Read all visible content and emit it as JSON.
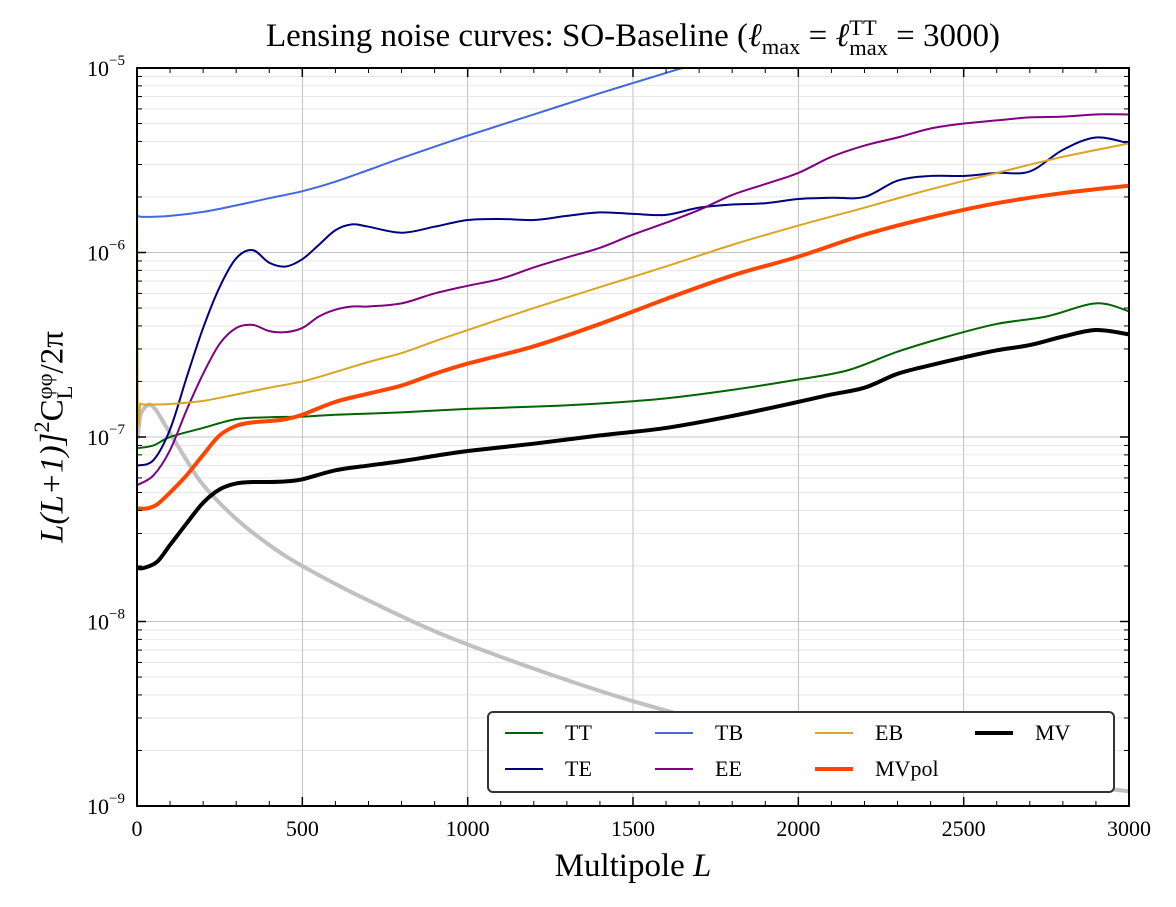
{
  "title": {
    "prefix": "Lensing noise curves: SO-Baseline (",
    "lmax_sub": "max",
    "tt_sup": "TT",
    "tt_sub": "max",
    "suffix": " = 3000)"
  },
  "xlabel": "Multipole",
  "xlabel_var": "L",
  "ylabel": {
    "pre": "L(L+1)]",
    "exp2": "2",
    "c": "C",
    "phi_sup": "φφ",
    "l_sub": "L",
    "post": "/2π"
  },
  "chart_data": {
    "type": "line",
    "x_scale": "linear",
    "y_scale": "log",
    "xlim": [
      0,
      3000
    ],
    "ylim": [
      1e-09,
      1e-05
    ],
    "grid": true,
    "legend_location": "lower-right",
    "legend_columns": 4,
    "x_ticks": [
      0,
      500,
      1000,
      1500,
      2000,
      2500,
      3000
    ],
    "x_tick_labels": [
      "0",
      "500",
      "1000",
      "1500",
      "2000",
      "2500",
      "3000"
    ],
    "y_ticks": [
      1e-09,
      1e-08,
      1e-07,
      1e-06,
      1e-05
    ],
    "y_tick_labels": [
      {
        "base": "10",
        "exp": "−9"
      },
      {
        "base": "10",
        "exp": "−8"
      },
      {
        "base": "10",
        "exp": "−7"
      },
      {
        "base": "10",
        "exp": "−6"
      },
      {
        "base": "10",
        "exp": "−5"
      }
    ],
    "series": [
      {
        "name": "",
        "color": "#c0c0c0",
        "width": 4,
        "x": [
          2,
          10,
          20,
          30,
          40,
          50,
          60,
          80,
          100,
          150,
          200,
          300,
          400,
          500,
          700,
          1000,
          1500,
          2000,
          2500,
          3000
        ],
        "y": [
          1e-07,
          1.3e-07,
          1.42e-07,
          1.48e-07,
          1.5e-07,
          1.45e-07,
          1.38e-07,
          1.2e-07,
          1.05e-07,
          7.5e-08,
          5.5e-08,
          3.6e-08,
          2.6e-08,
          2e-08,
          1.3e-08,
          7.5e-09,
          3.7e-09,
          2.2e-09,
          1.55e-09,
          1.2e-09
        ]
      },
      {
        "name": "TT",
        "color": "#006400",
        "width": 2,
        "x": [
          2,
          50,
          100,
          200,
          300,
          400,
          500,
          600,
          800,
          1000,
          1200,
          1400,
          1600,
          1800,
          2000,
          2150,
          2300,
          2450,
          2600,
          2750,
          2900,
          3000
        ],
        "y": [
          8.7e-08,
          9e-08,
          1e-07,
          1.12e-07,
          1.25e-07,
          1.28e-07,
          1.29e-07,
          1.32e-07,
          1.36e-07,
          1.42e-07,
          1.46e-07,
          1.52e-07,
          1.62e-07,
          1.8e-07,
          2.05e-07,
          2.3e-07,
          2.9e-07,
          3.5e-07,
          4.1e-07,
          4.5e-07,
          5.3e-07,
          4.8e-07
        ]
      },
      {
        "name": "TE",
        "color": "#000080",
        "width": 2,
        "x": [
          2,
          50,
          100,
          150,
          200,
          250,
          300,
          350,
          400,
          450,
          500,
          550,
          600,
          650,
          700,
          800,
          900,
          1000,
          1100,
          1200,
          1300,
          1400,
          1500,
          1600,
          1700,
          1800,
          1900,
          2000,
          2100,
          2200,
          2300,
          2400,
          2500,
          2600,
          2700,
          2800,
          2900,
          3000
        ],
        "y": [
          7e-08,
          7.5e-08,
          1.1e-07,
          2.1e-07,
          3.9e-07,
          6.5e-07,
          9.3e-07,
          1.03e-06,
          8.8e-07,
          8.4e-07,
          9.2e-07,
          1.1e-06,
          1.32e-06,
          1.42e-06,
          1.38e-06,
          1.28e-06,
          1.38e-06,
          1.5e-06,
          1.52e-06,
          1.5e-06,
          1.58e-06,
          1.65e-06,
          1.62e-06,
          1.6e-06,
          1.75e-06,
          1.82e-06,
          1.85e-06,
          1.95e-06,
          1.98e-06,
          2e-06,
          2.45e-06,
          2.6e-06,
          2.6e-06,
          2.7e-06,
          2.75e-06,
          3.6e-06,
          4.2e-06,
          3.9e-06
        ]
      },
      {
        "name": "TB",
        "color": "#4169e1",
        "width": 2,
        "x": [
          2,
          20,
          100,
          200,
          300,
          400,
          500,
          600,
          700,
          800,
          1000,
          1200,
          1400,
          1600,
          1650
        ],
        "y": [
          1.58e-06,
          1.56e-06,
          1.58e-06,
          1.66e-06,
          1.8e-06,
          1.97e-06,
          2.15e-06,
          2.42e-06,
          2.8e-06,
          3.25e-06,
          4.3e-06,
          5.6e-06,
          7.3e-06,
          9.4e-06,
          1e-05
        ]
      },
      {
        "name": "EE",
        "color": "#800080",
        "width": 2,
        "x": [
          2,
          50,
          100,
          150,
          200,
          250,
          300,
          350,
          400,
          450,
          500,
          550,
          600,
          650,
          700,
          800,
          900,
          1000,
          1100,
          1200,
          1300,
          1400,
          1500,
          1600,
          1700,
          1800,
          1900,
          2000,
          2100,
          2200,
          2300,
          2400,
          2500,
          2600,
          2700,
          2800,
          2900,
          3000
        ],
        "y": [
          5.5e-08,
          6.2e-08,
          8.5e-08,
          1.4e-07,
          2.2e-07,
          3.2e-07,
          3.9e-07,
          4.05e-07,
          3.75e-07,
          3.7e-07,
          3.9e-07,
          4.5e-07,
          4.9e-07,
          5.1e-07,
          5.1e-07,
          5.3e-07,
          6e-07,
          6.6e-07,
          7.2e-07,
          8.3e-07,
          9.4e-07,
          1.06e-06,
          1.25e-06,
          1.45e-06,
          1.7e-06,
          2.05e-06,
          2.35e-06,
          2.7e-06,
          3.3e-06,
          3.8e-06,
          4.2e-06,
          4.7e-06,
          5e-06,
          5.2e-06,
          5.4e-06,
          5.45e-06,
          5.6e-06,
          5.6e-06
        ]
      },
      {
        "name": "EB",
        "color": "#daa520",
        "width": 2,
        "x": [
          0,
          2,
          10,
          20,
          50,
          100,
          200,
          300,
          400,
          500,
          600,
          700,
          800,
          900,
          1000,
          1200,
          1400,
          1600,
          1800,
          2000,
          2200,
          2400,
          2600,
          2800,
          3000
        ],
        "y": [
          1e-05,
          1.6e-07,
          1.52e-07,
          1.5e-07,
          1.5e-07,
          1.51e-07,
          1.57e-07,
          1.7e-07,
          1.85e-07,
          2e-07,
          2.25e-07,
          2.55e-07,
          2.85e-07,
          3.3e-07,
          3.8e-07,
          5e-07,
          6.5e-07,
          8.4e-07,
          1.1e-06,
          1.4e-06,
          1.75e-06,
          2.2e-06,
          2.7e-06,
          3.3e-06,
          3.9e-06
        ]
      },
      {
        "name": "MVpol",
        "color": "#ff4500",
        "width": 4,
        "x": [
          2,
          30,
          60,
          100,
          150,
          200,
          250,
          300,
          350,
          400,
          450,
          500,
          600,
          700,
          800,
          900,
          1000,
          1200,
          1400,
          1600,
          1800,
          2000,
          2200,
          2400,
          2600,
          2800,
          3000
        ],
        "y": [
          4.1e-08,
          4.1e-08,
          4.3e-08,
          5e-08,
          6.2e-08,
          8e-08,
          1.02e-07,
          1.15e-07,
          1.2e-07,
          1.22e-07,
          1.25e-07,
          1.32e-07,
          1.55e-07,
          1.72e-07,
          1.9e-07,
          2.2e-07,
          2.5e-07,
          3.1e-07,
          4.1e-07,
          5.6e-07,
          7.5e-07,
          9.5e-07,
          1.25e-06,
          1.55e-06,
          1.85e-06,
          2.1e-06,
          2.3e-06
        ]
      },
      {
        "name": "MV",
        "color": "#000000",
        "width": 4,
        "x": [
          2,
          20,
          60,
          100,
          150,
          200,
          250,
          300,
          350,
          400,
          450,
          500,
          600,
          700,
          800,
          900,
          1000,
          1200,
          1400,
          1600,
          1800,
          2000,
          2100,
          2200,
          2300,
          2400,
          2500,
          2600,
          2700,
          2800,
          2900,
          3000
        ],
        "y": [
          1.95e-08,
          1.95e-08,
          2.1e-08,
          2.6e-08,
          3.4e-08,
          4.4e-08,
          5.2e-08,
          5.6e-08,
          5.7e-08,
          5.7e-08,
          5.75e-08,
          5.9e-08,
          6.6e-08,
          7e-08,
          7.4e-08,
          7.9e-08,
          8.4e-08,
          9.2e-08,
          1.02e-07,
          1.12e-07,
          1.3e-07,
          1.55e-07,
          1.7e-07,
          1.85e-07,
          2.2e-07,
          2.45e-07,
          2.7e-07,
          2.95e-07,
          3.15e-07,
          3.5e-07,
          3.8e-07,
          3.6e-07
        ]
      }
    ]
  }
}
